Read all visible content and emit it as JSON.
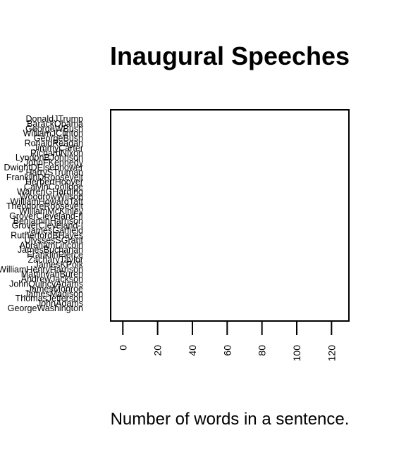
{
  "chart_data": {
    "type": "scatter",
    "title": "Inaugural Speeches",
    "xlabel": "Number of words in a sentence.",
    "ylabel": "",
    "categories": [
      "GeorgeWashington",
      "JohnAdams",
      "ThomasJefferson",
      "JamesMadison",
      "JamesMonroe",
      "JohnQuincyAdams",
      "AndrewJackson",
      "MartinvanBuren",
      "WilliamHenryHarrison",
      "JamesKPolk",
      "ZacharyTaylor",
      "FranklinPierce",
      "JamesBuchanan",
      "AbrahamLincoln",
      "UlyssesSGrant",
      "RutherfordBHayes",
      "JamesGarfield",
      "GroverCleveland-I",
      "BenjaminHarrison",
      "GroverCleveland-II",
      "WilliamMcKinley",
      "TheodoreRoosevelt",
      "WilliamHowardTaft",
      "WoodrowWilson",
      "WarrenGHarding",
      "CalvinCoolidge",
      "HerbertHoover",
      "FranklinDRoosevelt",
      "HarrySTruman",
      "DwightDEisenhower",
      "JohnFKennedy",
      "LyndonBJohnson",
      "RichardNixon",
      "JimmyCarter",
      "RonaldReagan",
      "GeorgeBush",
      "WilliamJClinton",
      "GeorgeWBush",
      "BarackObama",
      "DonaldJTrump"
    ],
    "values": [],
    "xlim": [
      -7,
      130
    ],
    "xticks": [
      0,
      20,
      40,
      60,
      80,
      100,
      120
    ],
    "xtick_labels": [
      "0",
      "20",
      "40",
      "60",
      "80",
      "100",
      "120"
    ],
    "grid": false,
    "legend": "none"
  }
}
